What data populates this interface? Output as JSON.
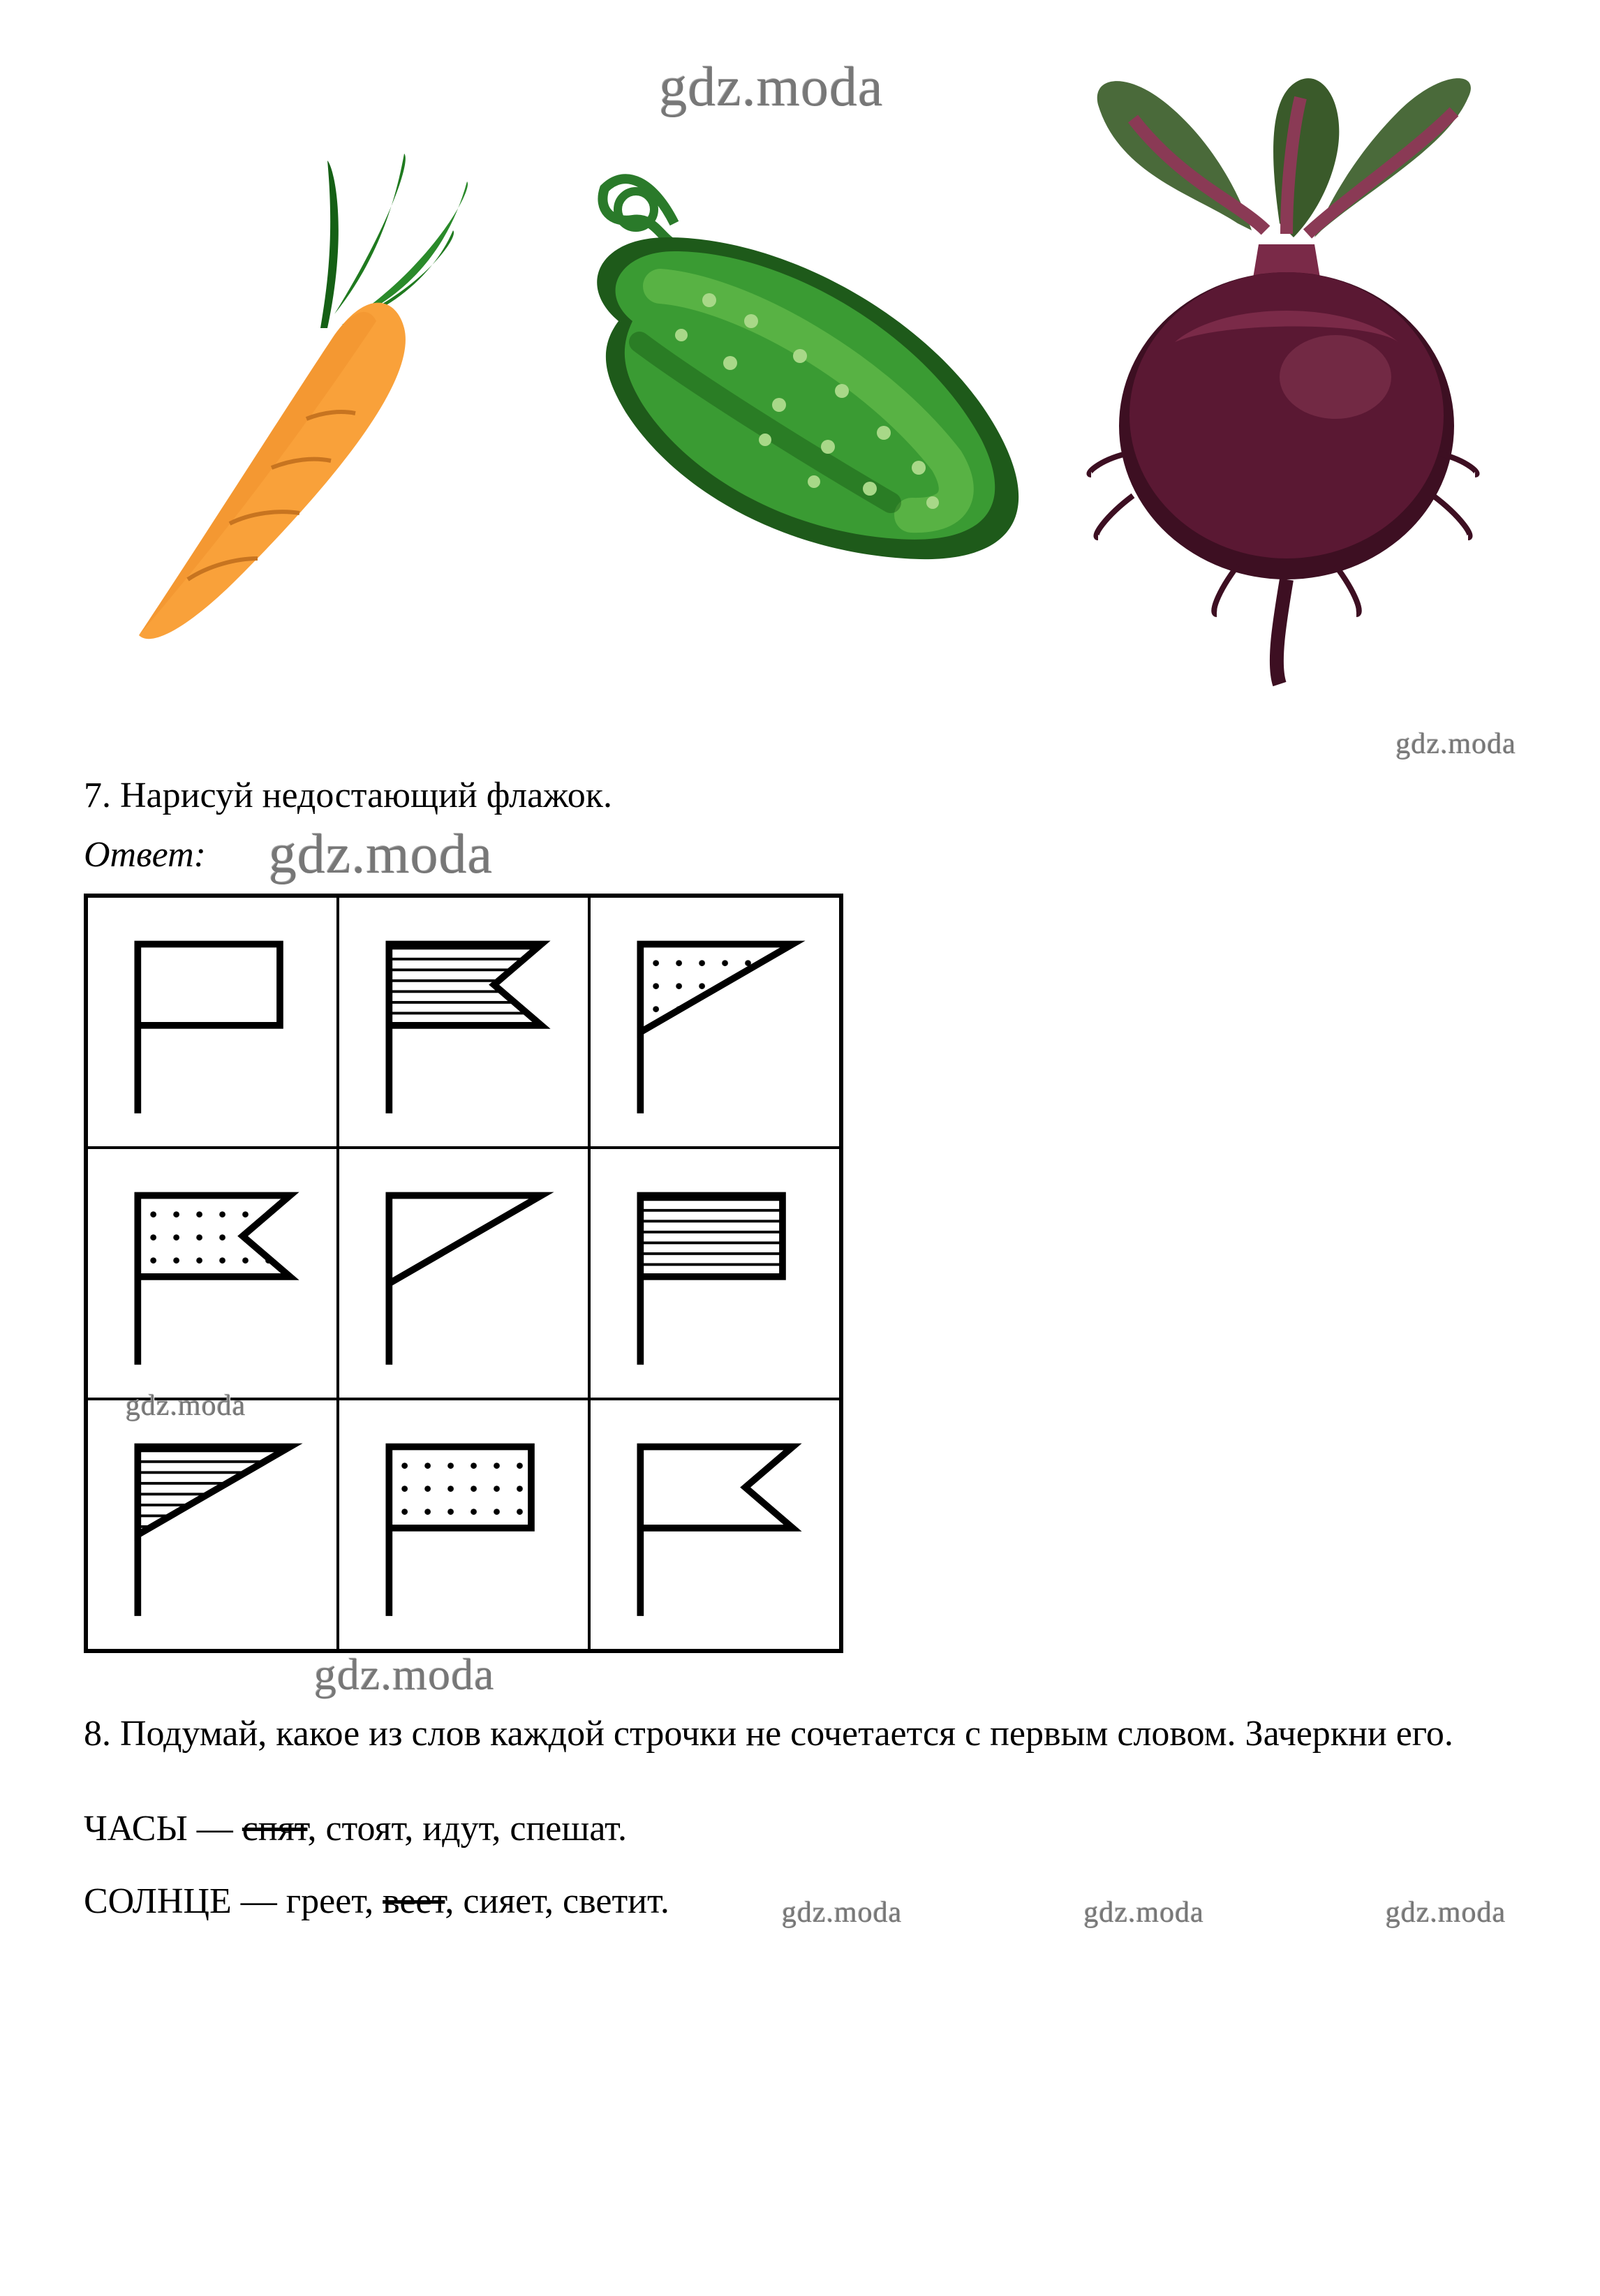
{
  "watermark": "gdz.moda",
  "task7": {
    "number": "7.",
    "text": "Нарисуй недостающий флажок."
  },
  "answer_label": "Ответ:",
  "task8": {
    "number": "8.",
    "text": "Подумай, какое из слов каждой строчки не сочетается с первым словом. Зачеркни его."
  },
  "line1": {
    "head": "ЧАСЫ — ",
    "struck": "спят",
    "rest": ", стоят, идут, спешат."
  },
  "line2": {
    "head": "СОЛНЦЕ — греет, ",
    "struck": "веет",
    "rest": ", сияет, светит."
  },
  "flag_grid": {
    "type": "grid",
    "rows": 3,
    "cols": 3,
    "cell_size": 360,
    "border_color": "#000000",
    "cells": [
      {
        "shape": "rect",
        "fill": "blank"
      },
      {
        "shape": "swallow",
        "fill": "lines"
      },
      {
        "shape": "tri",
        "fill": "dots"
      },
      {
        "shape": "swallow",
        "fill": "dots"
      },
      {
        "shape": "tri",
        "fill": "blank"
      },
      {
        "shape": "rect",
        "fill": "lines"
      },
      {
        "shape": "tri",
        "fill": "lines"
      },
      {
        "shape": "rect",
        "fill": "dots"
      },
      {
        "shape": "swallow",
        "fill": "blank"
      }
    ]
  },
  "vegetables": {
    "carrot": {
      "body": "#f9a13a",
      "leaf": "#1f7a1f"
    },
    "cucumber": {
      "body": "#3a9b33",
      "dark": "#1e5a1a",
      "light": "#6cc250"
    },
    "beet": {
      "body": "#5a1833",
      "highlight": "#7a2a48",
      "leaf": "#3a5a2a",
      "stem": "#8a3a55"
    }
  },
  "colors": {
    "text": "#000000",
    "background": "#ffffff",
    "watermark": "#777777"
  }
}
